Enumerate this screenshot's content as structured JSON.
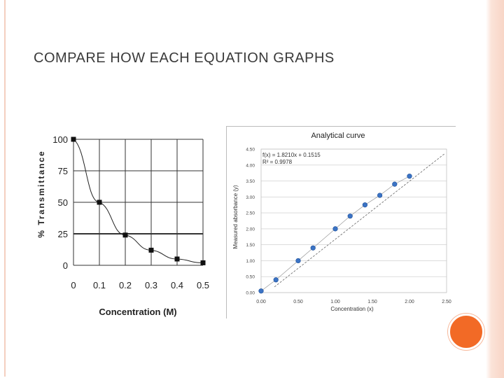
{
  "slide": {
    "title": "COMPARE HOW EACH EQUATION GRAPHS"
  },
  "chart_data": [
    {
      "type": "line",
      "title": "",
      "xlabel": "Concentration (M)",
      "ylabel": "% Transmittance",
      "x_ticks": [
        "0",
        "0.1",
        "0.2",
        "0.3",
        "0.4",
        "0.5"
      ],
      "y_ticks": [
        "0",
        "25",
        "50",
        "75",
        "100"
      ],
      "xlim": [
        0,
        0.5
      ],
      "ylim": [
        0,
        100
      ],
      "grid": true,
      "x": [
        0,
        0.1,
        0.2,
        0.3,
        0.4,
        0.5
      ],
      "y": [
        100,
        50,
        24,
        12,
        5,
        2
      ]
    },
    {
      "type": "scatter",
      "title": "Analytical curve",
      "xlabel": "Concentration (x)",
      "ylabel": "Measured absorbance (y)",
      "equation_text": "f(x) = 1.8210x + 0.1515",
      "r2_text": "R² = 0.9978",
      "x_ticks": [
        "0.00",
        "0.50",
        "1.00",
        "1.50",
        "2.00",
        "2.50"
      ],
      "y_ticks": [
        "0.00",
        "0.50",
        "1.00",
        "1.50",
        "2.00",
        "2.50",
        "3.00",
        "3.50",
        "4.00",
        "4.50"
      ],
      "xlim": [
        0,
        2.5
      ],
      "ylim": [
        0,
        4.5
      ],
      "grid": true,
      "x": [
        0.0,
        0.2,
        0.5,
        0.7,
        1.0,
        1.2,
        1.4,
        1.6,
        1.8,
        2.0
      ],
      "y": [
        0.05,
        0.4,
        1.0,
        1.4,
        2.0,
        2.4,
        2.75,
        3.05,
        3.4,
        3.65
      ],
      "trendline": {
        "slope": 1.821,
        "intercept": 0.1515
      }
    }
  ]
}
